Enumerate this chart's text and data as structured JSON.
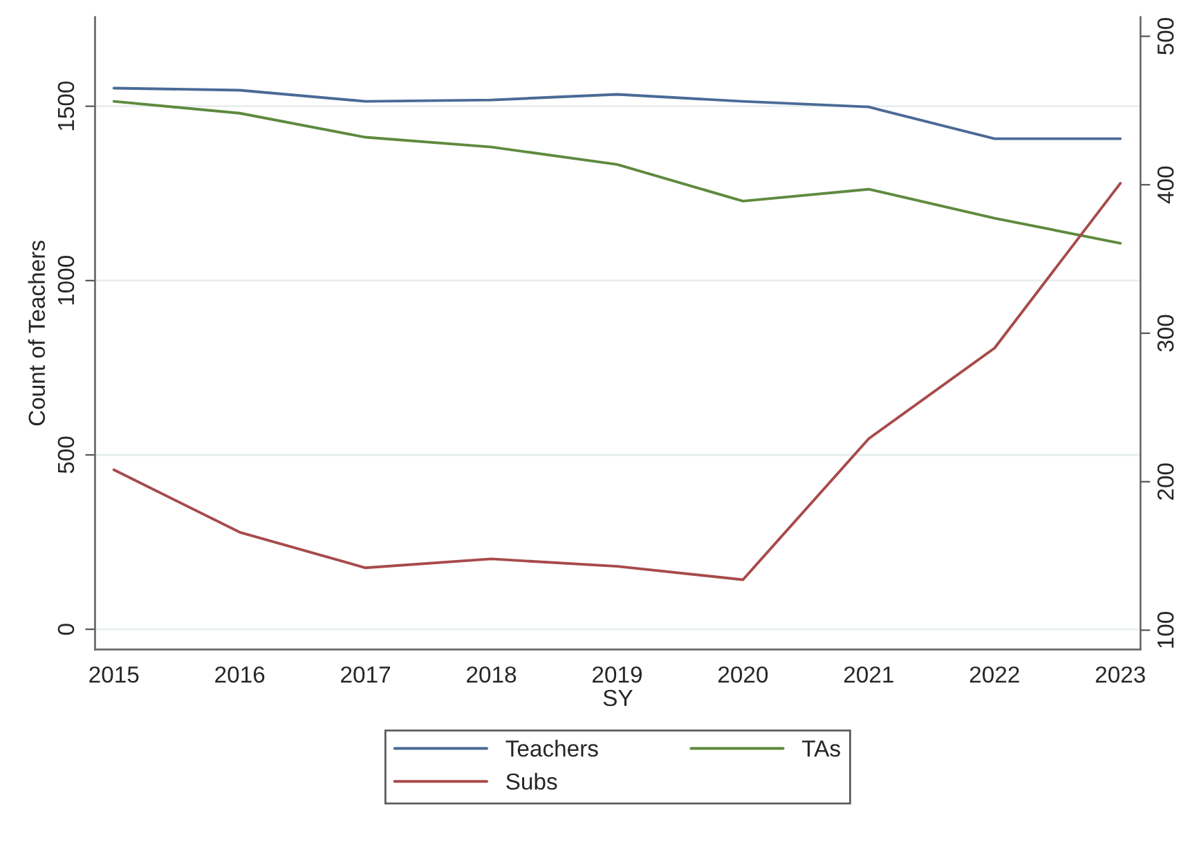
{
  "chart_data": {
    "type": "line",
    "xlabel": "SY",
    "ylabel": "Count of Teachers",
    "x": [
      2015,
      2016,
      2017,
      2018,
      2019,
      2020,
      2021,
      2022,
      2023
    ],
    "series": [
      {
        "name": "Teachers",
        "color": "#4a6a96",
        "values": [
          1552,
          1546,
          1514,
          1518,
          1534,
          1514,
          1498,
          1407,
          1407
        ]
      },
      {
        "name": "Subs",
        "color": "#a84a4a",
        "axis": "y2",
        "values": [
          208,
          166,
          142,
          148,
          143,
          134,
          229,
          290,
          401
        ]
      },
      {
        "name": "TAs",
        "color": "#5e8a3e",
        "values": [
          1514,
          1480,
          1411,
          1383,
          1333,
          1228,
          1262,
          1179,
          1107
        ]
      }
    ],
    "xlim": [
      2014.85,
      2023.16
    ],
    "xticks": [
      2015,
      2016,
      2017,
      2018,
      2019,
      2020,
      2021,
      2022,
      2023
    ],
    "ylim": [
      -58,
      1756
    ],
    "yticks": [
      0,
      500,
      1000,
      1500
    ],
    "y2lim": [
      87,
      513
    ],
    "y2ticks": [
      100,
      200,
      300,
      400,
      500
    ],
    "grid": "y",
    "legend": "bottom",
    "line_style": "solid"
  }
}
